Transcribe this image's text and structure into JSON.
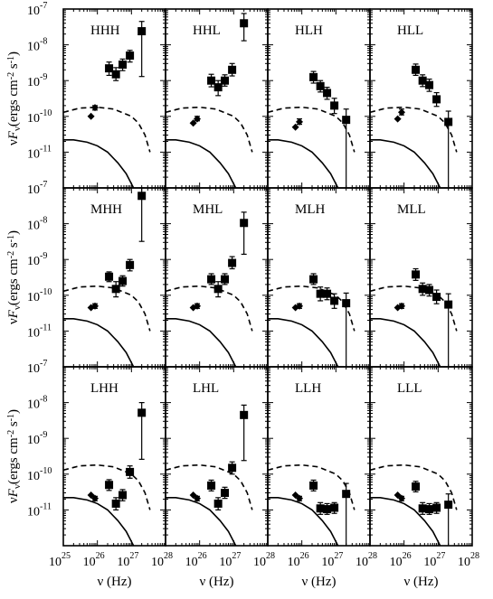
{
  "chart_data": {
    "type": "scatter",
    "grid": false,
    "layout": "3x4 panel grid, shared x and y axes",
    "x_scale": "log",
    "y_scale": "log",
    "xlim": [
      1e+25,
      1e+28
    ],
    "ylim": [
      1e-12,
      1e-07
    ],
    "xlabel": {
      "main": "ν",
      "unit": "(Hz)"
    },
    "ylabel": {
      "prefix": "ν",
      "F": "F",
      "sub": "ν",
      "unit_open": "(ergs cm",
      "exp1": "-2",
      "unit_mid": " s",
      "exp2": "-1",
      "close": ")"
    },
    "x_tick_labels": [
      {
        "base": "10",
        "exp": "25",
        "value": 1e+25
      },
      {
        "base": "10",
        "exp": "26",
        "value": 1e+26
      },
      {
        "base": "10",
        "exp": "27",
        "value": 1e+27
      },
      {
        "base": "10",
        "exp": "28",
        "value": 1e+28
      }
    ],
    "y_tick_labels": [
      {
        "base": "10",
        "exp": "-7",
        "value": 1e-07
      },
      {
        "base": "10",
        "exp": "-8",
        "value": 1e-08
      },
      {
        "base": "10",
        "exp": "-9",
        "value": 1e-09
      },
      {
        "base": "10",
        "exp": "-10",
        "value": 1e-10
      },
      {
        "base": "10",
        "exp": "-11",
        "value": 1e-11
      }
    ],
    "colors": {
      "ink": "#000000",
      "background": "#ffffff"
    },
    "curves": {
      "dashed": {
        "x": [
          1e+25,
          3e+25,
          1e+26,
          3e+26,
          1e+27,
          1.6e+27,
          2.5e+27,
          3.5e+27
        ],
        "y": [
          1.3e-10,
          1.7e-10,
          1.8e-10,
          1.6e-10,
          1e-10,
          6.5e-11,
          3e-11,
          1e-11
        ]
      },
      "solid": {
        "x": [
          1e+25,
          2e+25,
          5e+25,
          1e+26,
          2e+26,
          4e+26,
          7e+26,
          1e+27,
          1.3e+27
        ],
        "y": [
          2.2e-11,
          2.2e-11,
          1.9e-11,
          1.5e-11,
          1e-11,
          5e-12,
          2.5e-12,
          1.3e-12,
          8e-13
        ]
      }
    },
    "panels": [
      {
        "label": "HHH",
        "diamonds": [
          {
            "x": 6.5e+25,
            "y": 1e-10
          },
          {
            "x": 8.5e+25,
            "y": 1.75e-10,
            "lo": 1.5e-10,
            "hi": 2e-10
          }
        ],
        "squares": [
          {
            "x": 2.2e+26,
            "y": 2.2e-09,
            "lo": 1.4e-09,
            "hi": 3.3e-09
          },
          {
            "x": 3.5e+26,
            "y": 1.5e-09,
            "lo": 1e-09,
            "hi": 2.3e-09
          },
          {
            "x": 5.5e+26,
            "y": 2.8e-09,
            "lo": 1.9e-09,
            "hi": 4e-09
          },
          {
            "x": 9e+26,
            "y": 5e-09,
            "lo": 3.3e-09,
            "hi": 7e-09
          },
          {
            "x": 2e+27,
            "y": 2.4e-08,
            "lo": 1.3e-09,
            "hi": 4.5e-08
          }
        ]
      },
      {
        "label": "HHL",
        "diamonds": [
          {
            "x": 6.5e+25,
            "y": 6.5e-11
          },
          {
            "x": 8.5e+25,
            "y": 8.5e-11,
            "lo": 7.5e-11,
            "hi": 1e-10
          }
        ],
        "squares": [
          {
            "x": 2.2e+26,
            "y": 1e-09,
            "lo": 6.7e-10,
            "hi": 1.5e-09
          },
          {
            "x": 3.5e+26,
            "y": 6.5e-10,
            "lo": 3.8e-10,
            "hi": 1e-09
          },
          {
            "x": 5.5e+26,
            "y": 1e-09,
            "lo": 7e-10,
            "hi": 1.45e-09
          },
          {
            "x": 9e+26,
            "y": 2e-09,
            "lo": 1.35e-09,
            "hi": 3e-09
          },
          {
            "x": 2e+27,
            "y": 4e-08,
            "lo": 1.3e-08,
            "hi": 7.5e-08
          }
        ]
      },
      {
        "label": "HLH",
        "diamonds": [
          {
            "x": 6.5e+25,
            "y": 5e-11
          },
          {
            "x": 8.5e+25,
            "y": 7e-11,
            "lo": 6e-11,
            "hi": 8.5e-11
          }
        ],
        "squares": [
          {
            "x": 2.2e+26,
            "y": 1.25e-09,
            "lo": 8.5e-10,
            "hi": 1.8e-09
          },
          {
            "x": 3.5e+26,
            "y": 7e-10,
            "lo": 4.8e-10,
            "hi": 1e-09
          },
          {
            "x": 5.5e+26,
            "y": 4.5e-10,
            "lo": 3e-10,
            "hi": 6.5e-10
          },
          {
            "x": 9e+26,
            "y": 2e-10,
            "lo": 1.2e-10,
            "hi": 3.2e-10
          },
          {
            "x": 2e+27,
            "y": 8e-11,
            "lo": 1.05e-12,
            "hi": 1.6e-10
          }
        ]
      },
      {
        "label": "HLL",
        "diamonds": [
          {
            "x": 6.5e+25,
            "y": 8.5e-11
          },
          {
            "x": 8.5e+25,
            "y": 1.3e-10,
            "lo": 1.1e-10,
            "hi": 1.6e-10
          }
        ],
        "squares": [
          {
            "x": 2.2e+26,
            "y": 2e-09,
            "lo": 1.4e-09,
            "hi": 2.9e-09
          },
          {
            "x": 3.5e+26,
            "y": 1e-09,
            "lo": 6.8e-10,
            "hi": 1.45e-09
          },
          {
            "x": 5.5e+26,
            "y": 7.5e-10,
            "lo": 5e-10,
            "hi": 1.1e-09
          },
          {
            "x": 9e+26,
            "y": 3e-10,
            "lo": 1.9e-10,
            "hi": 4.6e-10
          },
          {
            "x": 2e+27,
            "y": 7e-11,
            "lo": 1.05e-12,
            "hi": 1.4e-10
          }
        ]
      },
      {
        "label": "MHH",
        "diamonds": [
          {
            "x": 6.5e+25,
            "y": 4.5e-11
          },
          {
            "x": 8.5e+25,
            "y": 5e-11,
            "lo": 4.3e-11,
            "hi": 5.8e-11
          }
        ],
        "squares": [
          {
            "x": 2.2e+26,
            "y": 3.3e-10,
            "lo": 2.4e-10,
            "hi": 4.5e-10
          },
          {
            "x": 3.5e+26,
            "y": 1.5e-10,
            "lo": 9e-11,
            "hi": 2.4e-10
          },
          {
            "x": 5.5e+26,
            "y": 2.5e-10,
            "lo": 1.8e-10,
            "hi": 3.5e-10
          },
          {
            "x": 9e+26,
            "y": 7e-10,
            "lo": 4.8e-10,
            "hi": 1e-09
          },
          {
            "x": 2e+27,
            "y": 6e-08,
            "lo": 3.2e-09,
            "hi": 1e-07
          }
        ]
      },
      {
        "label": "MHL",
        "diamonds": [
          {
            "x": 6.5e+25,
            "y": 4.5e-11
          },
          {
            "x": 8.5e+25,
            "y": 5e-11,
            "lo": 4.3e-11,
            "hi": 5.8e-11
          }
        ],
        "squares": [
          {
            "x": 2.2e+26,
            "y": 2.8e-10,
            "lo": 2e-10,
            "hi": 4e-10
          },
          {
            "x": 3.5e+26,
            "y": 1.5e-10,
            "lo": 9e-11,
            "hi": 2.4e-10
          },
          {
            "x": 5.5e+26,
            "y": 2.8e-10,
            "lo": 2e-10,
            "hi": 4e-10
          },
          {
            "x": 9e+26,
            "y": 8e-10,
            "lo": 5.5e-10,
            "hi": 1.2e-09
          },
          {
            "x": 2e+27,
            "y": 1.05e-08,
            "lo": 1.4e-09,
            "hi": 2.1e-08
          }
        ]
      },
      {
        "label": "MLH",
        "diamonds": [
          {
            "x": 6.5e+25,
            "y": 4.5e-11
          },
          {
            "x": 8.5e+25,
            "y": 5e-11,
            "lo": 4.3e-11,
            "hi": 5.8e-11
          }
        ],
        "squares": [
          {
            "x": 2.2e+26,
            "y": 2.8e-10,
            "lo": 2e-10,
            "hi": 4e-10
          },
          {
            "x": 3.5e+26,
            "y": 1.1e-10,
            "lo": 7e-11,
            "hi": 1.7e-10
          },
          {
            "x": 5.5e+26,
            "y": 1.1e-10,
            "lo": 7.5e-11,
            "hi": 1.6e-10
          },
          {
            "x": 9e+26,
            "y": 7e-11,
            "lo": 4.3e-11,
            "hi": 1.1e-10
          },
          {
            "x": 2e+27,
            "y": 6e-11,
            "lo": 1.05e-12,
            "hi": 1.15e-10
          }
        ]
      },
      {
        "label": "MLL",
        "diamonds": [
          {
            "x": 6.5e+25,
            "y": 4.5e-11
          },
          {
            "x": 8.5e+25,
            "y": 5e-11,
            "lo": 4.3e-11,
            "hi": 5.8e-11
          }
        ],
        "squares": [
          {
            "x": 2.2e+26,
            "y": 3.8e-10,
            "lo": 2.6e-10,
            "hi": 5.5e-10
          },
          {
            "x": 3.5e+26,
            "y": 1.5e-10,
            "lo": 1e-10,
            "hi": 2.2e-10
          },
          {
            "x": 5.5e+26,
            "y": 1.4e-10,
            "lo": 9.5e-11,
            "hi": 2e-10
          },
          {
            "x": 9e+26,
            "y": 9e-11,
            "lo": 5.8e-11,
            "hi": 1.4e-10
          },
          {
            "x": 2e+27,
            "y": 5.5e-11,
            "lo": 1.05e-12,
            "hi": 1.1e-10
          }
        ]
      },
      {
        "label": "LHH",
        "diamonds": [
          {
            "x": 6.5e+25,
            "y": 2.6e-11
          },
          {
            "x": 8.5e+25,
            "y": 2.1e-11,
            "lo": 1.8e-11,
            "hi": 2.4e-11
          }
        ],
        "squares": [
          {
            "x": 2.2e+26,
            "y": 5e-11,
            "lo": 3.5e-11,
            "hi": 7e-11
          },
          {
            "x": 3.5e+26,
            "y": 1.5e-11,
            "lo": 1e-11,
            "hi": 2.2e-11
          },
          {
            "x": 5.5e+26,
            "y": 2.6e-11,
            "lo": 1.8e-11,
            "hi": 3.7e-11
          },
          {
            "x": 9e+26,
            "y": 1.15e-10,
            "lo": 7.7e-11,
            "hi": 1.7e-10
          },
          {
            "x": 2e+27,
            "y": 5.2e-09,
            "lo": 2.6e-10,
            "hi": 1e-08
          }
        ]
      },
      {
        "label": "LHL",
        "diamonds": [
          {
            "x": 6.5e+25,
            "y": 2.6e-11
          },
          {
            "x": 8.5e+25,
            "y": 2.1e-11,
            "lo": 1.8e-11,
            "hi": 2.4e-11
          }
        ],
        "squares": [
          {
            "x": 2.2e+26,
            "y": 4.8e-11,
            "lo": 3.4e-11,
            "hi": 6.8e-11
          },
          {
            "x": 3.5e+26,
            "y": 1.5e-11,
            "lo": 1e-11,
            "hi": 2.2e-11
          },
          {
            "x": 5.5e+26,
            "y": 3e-11,
            "lo": 2.1e-11,
            "hi": 4.3e-11
          },
          {
            "x": 9e+26,
            "y": 1.5e-10,
            "lo": 1e-10,
            "hi": 2.2e-10
          },
          {
            "x": 2e+27,
            "y": 4.5e-09,
            "lo": 2.4e-10,
            "hi": 8.5e-09
          }
        ]
      },
      {
        "label": "LLH",
        "diamonds": [
          {
            "x": 6.5e+25,
            "y": 2.6e-11
          },
          {
            "x": 8.5e+25,
            "y": 2.1e-11,
            "lo": 1.8e-11,
            "hi": 2.4e-11
          }
        ],
        "squares": [
          {
            "x": 2.2e+26,
            "y": 4.8e-11,
            "lo": 3.4e-11,
            "hi": 6.8e-11
          },
          {
            "x": 3.5e+26,
            "y": 1.1e-11,
            "lo": 7.5e-12,
            "hi": 1.6e-11
          },
          {
            "x": 5.5e+26,
            "y": 1.05e-11,
            "lo": 7.5e-12,
            "hi": 1.5e-11
          },
          {
            "x": 9e+26,
            "y": 1.15e-11,
            "lo": 8e-12,
            "hi": 1.6e-11
          },
          {
            "x": 2e+27,
            "y": 2.8e-11,
            "lo": 1.05e-12,
            "hi": 5.5e-11
          }
        ]
      },
      {
        "label": "LLL",
        "diamonds": [
          {
            "x": 6.5e+25,
            "y": 2.6e-11
          },
          {
            "x": 8.5e+25,
            "y": 2.1e-11,
            "lo": 1.8e-11,
            "hi": 2.4e-11
          }
        ],
        "squares": [
          {
            "x": 2.2e+26,
            "y": 4.5e-11,
            "lo": 3.2e-11,
            "hi": 6.3e-11
          },
          {
            "x": 3.5e+26,
            "y": 1.1e-11,
            "lo": 7.5e-12,
            "hi": 1.6e-11
          },
          {
            "x": 5.5e+26,
            "y": 1.05e-11,
            "lo": 7.5e-12,
            "hi": 1.5e-11
          },
          {
            "x": 9e+26,
            "y": 1.15e-11,
            "lo": 8e-12,
            "hi": 1.6e-11
          },
          {
            "x": 2e+27,
            "y": 1.4e-11,
            "lo": 1.05e-12,
            "hi": 2.8e-11
          }
        ]
      }
    ]
  }
}
